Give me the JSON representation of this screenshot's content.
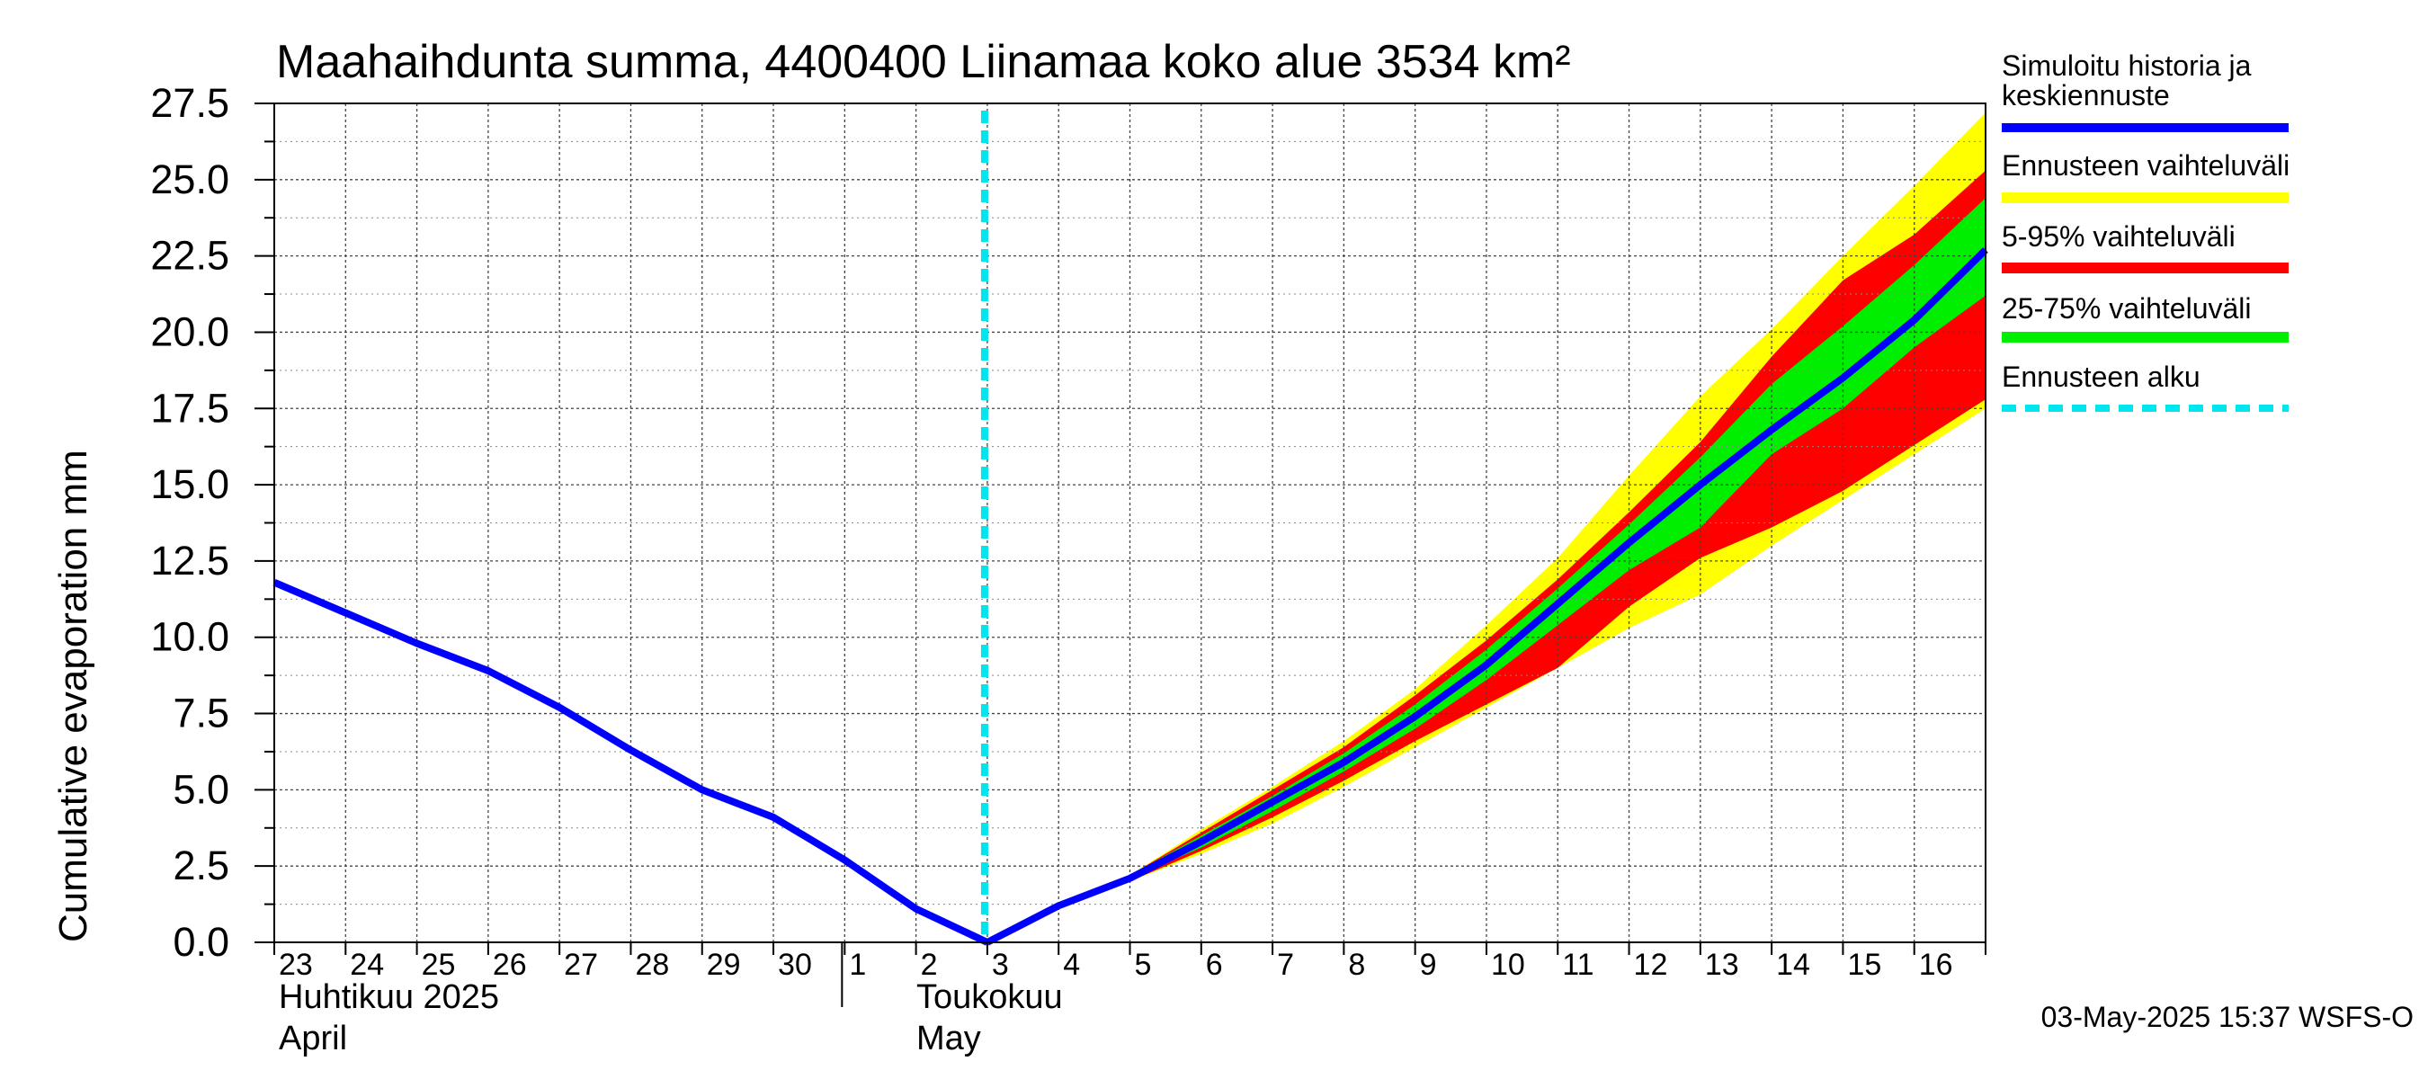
{
  "chart_data": {
    "type": "line",
    "title": "Maahaihdunta summa, 4400400 Liinamaa koko alue 3534 km²",
    "ylabel": "Cumulative evaporation   mm",
    "xlabel": "",
    "ylim": [
      0,
      27.5
    ],
    "yticks": [
      "0.0",
      "2.5",
      "5.0",
      "7.5",
      "10.0",
      "12.5",
      "15.0",
      "17.5",
      "20.0",
      "22.5",
      "25.0",
      "27.5"
    ],
    "xlim": [
      "2025-04-23",
      "2025-05-17"
    ],
    "day_labels": [
      "23",
      "24",
      "25",
      "26",
      "27",
      "28",
      "29",
      "30",
      "1",
      "2",
      "3",
      "4",
      "5",
      "6",
      "7",
      "8",
      "9",
      "10",
      "11",
      "12",
      "13",
      "14",
      "15",
      "16"
    ],
    "month_labels": [
      {
        "fi": "Huhtikuu  2025",
        "en": "April"
      },
      {
        "fi": "Toukokuu",
        "en": "May"
      }
    ],
    "grid": true,
    "legend_position": "right",
    "forecast_start": "2025-05-03",
    "history": {
      "name": "Simuloitu historia ja keskiennuste",
      "x": [
        "2025-04-23",
        "2025-04-24",
        "2025-04-25",
        "2025-04-26",
        "2025-04-27",
        "2025-04-28",
        "2025-04-29",
        "2025-04-30",
        "2025-05-01",
        "2025-05-02",
        "2025-05-03"
      ],
      "y": [
        11.8,
        10.8,
        9.8,
        8.9,
        7.7,
        6.3,
        5.0,
        4.1,
        2.7,
        1.1,
        0.0
      ]
    },
    "series": [
      {
        "name": "Simuloitu historia ja keskiennuste",
        "color": "#0000ff",
        "x": [
          "2025-05-03",
          "2025-05-04",
          "2025-05-05",
          "2025-05-06",
          "2025-05-07",
          "2025-05-08",
          "2025-05-09",
          "2025-05-10",
          "2025-05-11",
          "2025-05-12",
          "2025-05-13",
          "2025-05-14",
          "2025-05-15",
          "2025-05-16",
          "2025-05-17"
        ],
        "y": [
          0.0,
          1.2,
          2.1,
          3.3,
          4.6,
          5.9,
          7.4,
          9.1,
          11.1,
          13.1,
          15.0,
          16.8,
          18.5,
          20.4,
          22.7
        ]
      },
      {
        "name": "Ennusteen vaihteluväli",
        "color": "#ffff00",
        "x": [
          "2025-05-05",
          "2025-05-06",
          "2025-05-07",
          "2025-05-08",
          "2025-05-09",
          "2025-05-10",
          "2025-05-11",
          "2025-05-12",
          "2025-05-13",
          "2025-05-14",
          "2025-05-15",
          "2025-05-16",
          "2025-05-17"
        ],
        "lower": [
          2.0,
          2.9,
          3.9,
          5.1,
          6.4,
          7.7,
          9.0,
          10.3,
          11.4,
          13.0,
          14.5,
          16.0,
          17.5
        ],
        "upper": [
          2.2,
          3.7,
          5.1,
          6.6,
          8.3,
          10.4,
          12.6,
          15.3,
          17.9,
          20.1,
          22.5,
          24.8,
          27.2
        ]
      },
      {
        "name": "5-95% vaihteluväli",
        "color": "#ff0000",
        "x": [
          "2025-05-05",
          "2025-05-06",
          "2025-05-07",
          "2025-05-08",
          "2025-05-09",
          "2025-05-10",
          "2025-05-11",
          "2025-05-12",
          "2025-05-13",
          "2025-05-14",
          "2025-05-15",
          "2025-05-16",
          "2025-05-17"
        ],
        "lower": [
          2.0,
          3.0,
          4.1,
          5.3,
          6.6,
          7.8,
          9.0,
          11.0,
          12.6,
          13.6,
          14.8,
          16.3,
          17.8
        ],
        "upper": [
          2.2,
          3.6,
          5.0,
          6.4,
          8.1,
          9.9,
          11.9,
          14.1,
          16.4,
          19.2,
          21.7,
          23.2,
          25.3
        ]
      },
      {
        "name": "25-75% vaihteluväli",
        "color": "#00ee00",
        "x": [
          "2025-05-05",
          "2025-05-06",
          "2025-05-07",
          "2025-05-08",
          "2025-05-09",
          "2025-05-10",
          "2025-05-11",
          "2025-05-12",
          "2025-05-13",
          "2025-05-14",
          "2025-05-15",
          "2025-05-16",
          "2025-05-17"
        ],
        "lower": [
          2.1,
          3.1,
          4.3,
          5.6,
          7.0,
          8.6,
          10.4,
          12.2,
          13.6,
          16.0,
          17.5,
          19.5,
          21.2
        ],
        "upper": [
          2.2,
          3.5,
          4.8,
          6.2,
          7.8,
          9.6,
          11.6,
          13.7,
          15.9,
          18.3,
          20.2,
          22.2,
          24.4
        ]
      },
      {
        "name": "Ennusteen alku",
        "color": "#00e5ee",
        "x": [
          "2025-05-03"
        ]
      }
    ],
    "footer": "03-May-2025 15:37 WSFS-O"
  }
}
